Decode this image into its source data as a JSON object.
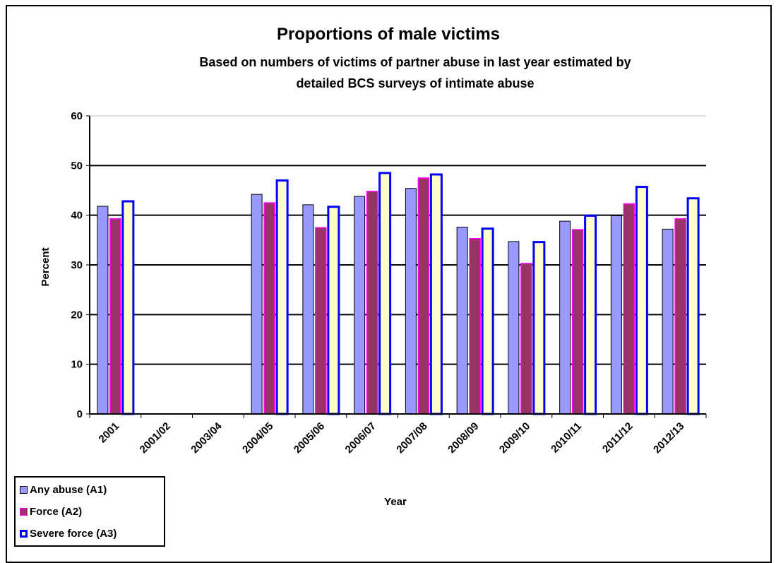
{
  "chart_data": {
    "type": "bar",
    "title": "Proportions of male victims",
    "subtitle_lines": [
      "Based on numbers of victims of partner abuse in last year estimated by",
      "detailed BCS surveys of intimate abuse"
    ],
    "xlabel": "Year",
    "ylabel": "Percent",
    "ylim": [
      0,
      60
    ],
    "yticks": [
      0,
      10,
      20,
      30,
      40,
      50,
      60
    ],
    "grid": true,
    "legend_position": "bottom-left",
    "categories": [
      "2001",
      "2001/02",
      "2003/04",
      "2004/05",
      "2005/06",
      "2006/07",
      "2007/08",
      "2008/09",
      "2009/10",
      "2010/11",
      "2011/12",
      "2012/13"
    ],
    "series": [
      {
        "name": "Any abuse (A1)",
        "fill": "#9999ff",
        "stroke": "#000000",
        "values": [
          41.8,
          null,
          null,
          44.2,
          42.1,
          43.8,
          45.4,
          37.6,
          34.7,
          38.8,
          39.9,
          37.2
        ]
      },
      {
        "name": "Force (A2)",
        "fill": "#993366",
        "stroke": "#ff00ff",
        "values": [
          39.3,
          null,
          null,
          42.5,
          37.5,
          44.8,
          47.5,
          35.3,
          30.3,
          37.1,
          42.3,
          39.3
        ]
      },
      {
        "name": "Severe force (A3)",
        "fill": "#ffffcc",
        "stroke": "#0000ff",
        "values": [
          42.8,
          null,
          null,
          47.0,
          41.7,
          48.5,
          48.2,
          37.3,
          34.6,
          39.9,
          45.7,
          43.4
        ]
      }
    ]
  }
}
